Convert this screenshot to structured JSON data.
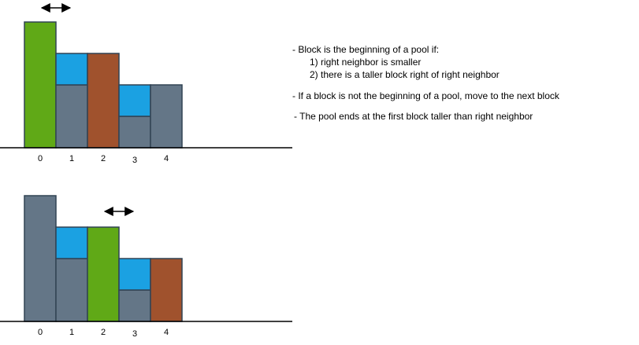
{
  "colors": {
    "gray": "#647687",
    "water": "#1ba1e2",
    "start": "#60a917",
    "end": "#a0522d",
    "outline": "#314354"
  },
  "panels": [
    {
      "blocks": [
        {
          "label": "0",
          "height": 4,
          "water": 0,
          "role": "start"
        },
        {
          "label": "1",
          "height": 2,
          "water": 1,
          "role": "gray"
        },
        {
          "label": "2",
          "height": 3,
          "water": 0,
          "role": "end"
        },
        {
          "label": "3",
          "height": 1,
          "water": 1,
          "role": "gray"
        },
        {
          "label": "4",
          "height": 2,
          "water": 0,
          "role": "gray"
        }
      ],
      "arrow": {
        "from_block": 0,
        "to_block": 1
      }
    },
    {
      "blocks": [
        {
          "label": "0",
          "height": 4,
          "water": 0,
          "role": "gray"
        },
        {
          "label": "1",
          "height": 2,
          "water": 1,
          "role": "gray"
        },
        {
          "label": "2",
          "height": 3,
          "water": 0,
          "role": "start"
        },
        {
          "label": "3",
          "height": 1,
          "water": 1,
          "role": "gray"
        },
        {
          "label": "4",
          "height": 2,
          "water": 0,
          "role": "end"
        }
      ],
      "arrow": {
        "from_block": 2,
        "to_block": 3
      }
    }
  ],
  "rules": {
    "heading": "- Block is the beginning of a pool if:",
    "cond1": "1) right neighbor is smaller",
    "cond2": "2) there is a taller block right of right neighbor",
    "rule2": "- If a block is not the beginning of a pool, move to the next block",
    "rule3": "- The pool ends at the first block taller than right neighbor"
  }
}
